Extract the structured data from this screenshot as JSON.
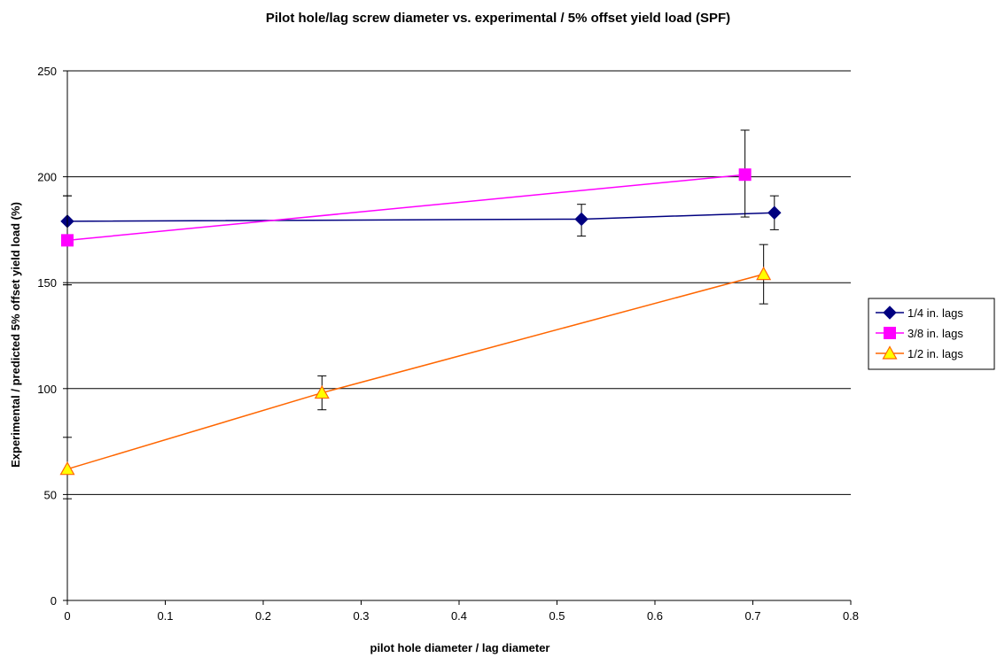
{
  "chart_data": {
    "type": "line",
    "title": "Pilot hole/lag screw diameter vs. experimental / 5% offset yield load (SPF)",
    "xlabel": "pilot hole diameter / lag diameter",
    "ylabel": "Experimental / predicted 5% offset yield load (%)",
    "xlim": [
      0,
      0.8
    ],
    "ylim": [
      0,
      250
    ],
    "x_ticks": [
      "0",
      "0.1",
      "0.2",
      "0.3",
      "0.4",
      "0.5",
      "0.6",
      "0.7",
      "0.8"
    ],
    "y_ticks": [
      "0",
      "50",
      "100",
      "150",
      "200",
      "250"
    ],
    "grid": "horizontal",
    "legend_position": "right",
    "series": [
      {
        "name": "1/4 in. lags",
        "color": "#000080",
        "marker": "diamond",
        "points": [
          {
            "x": 0,
            "y": 179,
            "err_low": 30,
            "err_high": 12
          },
          {
            "x": 0.525,
            "y": 180,
            "err_low": 8,
            "err_high": 7
          },
          {
            "x": 0.722,
            "y": 183,
            "err_low": 8,
            "err_high": 8
          }
        ]
      },
      {
        "name": "3/8 in. lags",
        "color": "#ff00ff",
        "marker": "square",
        "points": [
          {
            "x": 0,
            "y": 170,
            "err_low": 21,
            "err_high": 21
          },
          {
            "x": 0.692,
            "y": 201,
            "err_low": 20,
            "err_high": 21
          }
        ]
      },
      {
        "name": "1/2 in. lags",
        "color": "#ff6600",
        "marker_fill": "#ffff00",
        "marker": "triangle",
        "points": [
          {
            "x": 0,
            "y": 62,
            "err_low": 14,
            "err_high": 15
          },
          {
            "x": 0.26,
            "y": 98,
            "err_low": 8,
            "err_high": 8
          },
          {
            "x": 0.711,
            "y": 154,
            "err_low": 14,
            "err_high": 14
          }
        ]
      }
    ]
  }
}
